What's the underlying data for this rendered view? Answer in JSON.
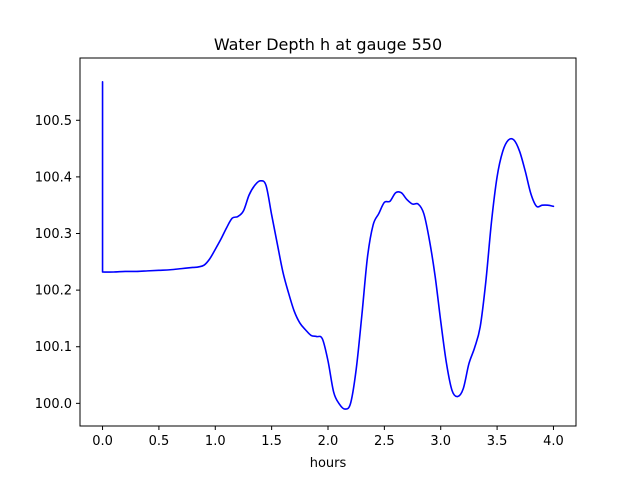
{
  "chart_data": {
    "type": "line",
    "title": "Water Depth h at gauge 550",
    "xlabel": "hours",
    "ylabel": "",
    "xlim": [
      -0.2,
      4.2
    ],
    "ylim": [
      99.96,
      100.61
    ],
    "grid": false,
    "legend": "none",
    "x_ticks": [
      0.0,
      0.5,
      1.0,
      1.5,
      2.0,
      2.5,
      3.0,
      3.5,
      4.0
    ],
    "x_tick_labels": [
      "0.0",
      "0.5",
      "1.0",
      "1.5",
      "2.0",
      "2.5",
      "3.0",
      "3.5",
      "4.0"
    ],
    "y_ticks": [
      100.0,
      100.1,
      100.2,
      100.3,
      100.4,
      100.5
    ],
    "y_tick_labels": [
      "100.0",
      "100.1",
      "100.2",
      "100.3",
      "100.4",
      "100.5"
    ],
    "series": [
      {
        "color": "#0000ff",
        "x": [
          0.0,
          0.0,
          0.0,
          0.1,
          0.2,
          0.3,
          0.4,
          0.5,
          0.6,
          0.7,
          0.8,
          0.85,
          0.9,
          0.95,
          1.0,
          1.05,
          1.1,
          1.15,
          1.2,
          1.25,
          1.3,
          1.35,
          1.4,
          1.45,
          1.5,
          1.55,
          1.6,
          1.65,
          1.7,
          1.75,
          1.8,
          1.85,
          1.9,
          1.95,
          2.0,
          2.05,
          2.1,
          2.15,
          2.2,
          2.25,
          2.3,
          2.35,
          2.4,
          2.45,
          2.5,
          2.55,
          2.6,
          2.65,
          2.7,
          2.75,
          2.8,
          2.85,
          2.9,
          2.95,
          3.0,
          3.05,
          3.1,
          3.15,
          3.2,
          3.25,
          3.3,
          3.35,
          3.4,
          3.45,
          3.5,
          3.55,
          3.6,
          3.65,
          3.7,
          3.75,
          3.8,
          3.85,
          3.9,
          3.95,
          4.0
        ],
        "y": [
          100.568,
          100.232,
          100.232,
          100.232,
          100.233,
          100.233,
          100.234,
          100.235,
          100.236,
          100.238,
          100.24,
          100.241,
          100.244,
          100.255,
          100.272,
          100.29,
          100.31,
          100.327,
          100.33,
          100.34,
          100.368,
          100.385,
          100.393,
          100.385,
          100.333,
          100.282,
          100.232,
          100.195,
          100.163,
          100.142,
          100.13,
          100.12,
          100.118,
          100.114,
          100.075,
          100.02,
          99.999,
          99.99,
          100.0,
          100.06,
          100.155,
          100.258,
          100.315,
          100.335,
          100.355,
          100.357,
          100.372,
          100.372,
          100.36,
          100.352,
          100.352,
          100.335,
          100.288,
          100.225,
          100.145,
          100.072,
          100.023,
          100.012,
          100.026,
          100.07,
          100.098,
          100.135,
          100.215,
          100.32,
          100.4,
          100.445,
          100.465,
          100.465,
          100.445,
          100.41,
          100.37,
          100.348,
          100.35,
          100.35,
          100.348
        ]
      }
    ]
  }
}
